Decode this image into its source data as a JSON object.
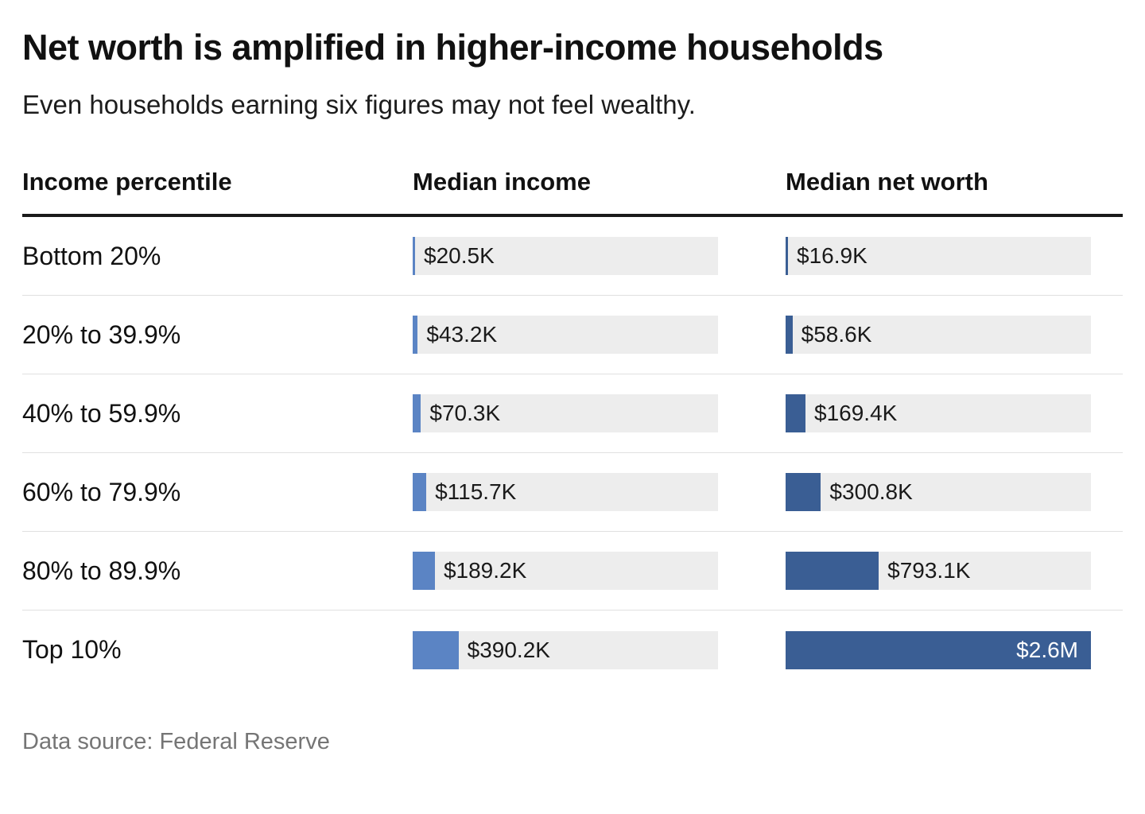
{
  "title": "Net worth is amplified in higher-income households",
  "subtitle": "Even households earning six figures may not feel wealthy.",
  "columns": {
    "percentile": "Income percentile",
    "income": "Median income",
    "networth": "Median net worth"
  },
  "footer_source": "Data source: Federal Reserve",
  "colors": {
    "income_bar": "#5b84c4",
    "networth_bar": "#3a5e94",
    "track": "#ededed",
    "heading_text": "#111111",
    "value_text": "#1a1a1a",
    "inside_label_text": "#ffffff",
    "source_text": "#757575",
    "row_divider": "#e0e0e0",
    "header_rule": "#1a1a1a"
  },
  "chart_data": {
    "type": "bar",
    "orientation": "horizontal",
    "title": "Net worth is amplified in higher-income households",
    "subtitle": "Even households earning six figures may not feel wealthy.",
    "source": "Data source: Federal Reserve",
    "categories": [
      "Bottom 20%",
      "20% to 39.9%",
      "40% to 59.9%",
      "60% to 79.9%",
      "80% to 89.9%",
      "Top 10%"
    ],
    "value_axis_unit": "USD thousands",
    "value_axis_range": [
      0,
      2600
    ],
    "gridlines": false,
    "legend": "none (column headers act as series labels)",
    "series": [
      {
        "name": "Median income",
        "color": "#5b84c4",
        "values": [
          20.5,
          43.2,
          70.3,
          115.7,
          189.2,
          390.2
        ],
        "labels": [
          "$20.5K",
          "$43.2K",
          "$70.3K",
          "$115.7K",
          "$189.2K",
          "$390.2K"
        ]
      },
      {
        "name": "Median net worth",
        "color": "#3a5e94",
        "values": [
          16.9,
          58.6,
          169.4,
          300.8,
          793.1,
          2600
        ],
        "labels": [
          "$16.9K",
          "$58.6K",
          "$169.4K",
          "$300.8K",
          "$793.1K",
          "$2.6M"
        ]
      }
    ]
  }
}
